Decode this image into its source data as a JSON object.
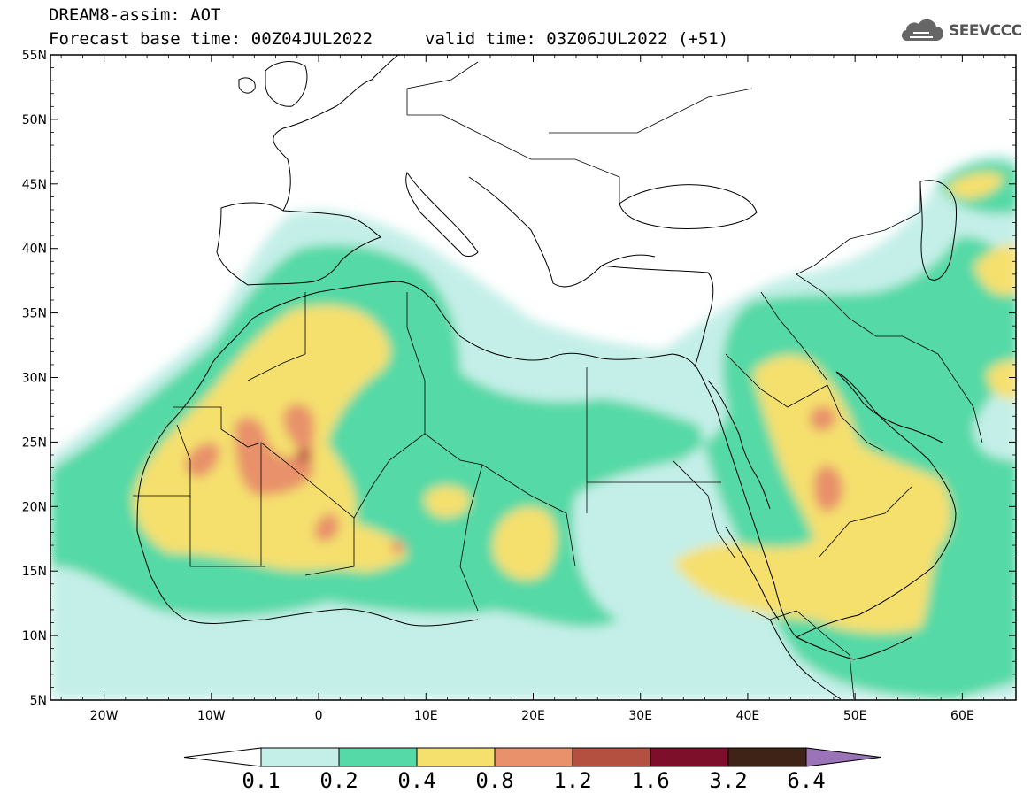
{
  "title": {
    "line1": "DREAM8-assim: AOT",
    "line2": "Forecast base time: 00Z04JUL2022",
    "valid": "valid time: 03Z06JUL2022 (+51)"
  },
  "logo": {
    "text": "SEEVCCC",
    "icon": "cloud-icon"
  },
  "map": {
    "lon_range": [
      -25,
      65
    ],
    "lat_range": [
      5,
      55
    ],
    "lat_ticks": [
      "55N",
      "50N",
      "45N",
      "40N",
      "35N",
      "30N",
      "25N",
      "20N",
      "15N",
      "10N",
      "5N"
    ],
    "lon_ticks": [
      "20W",
      "10W",
      "0",
      "10E",
      "20E",
      "30E",
      "40E",
      "50E",
      "60E"
    ]
  },
  "colorbar": {
    "levels": [
      "0.1",
      "0.2",
      "0.4",
      "0.8",
      "1.2",
      "1.6",
      "3.2",
      "6.4"
    ],
    "colors": [
      "#c4efe8",
      "#55d9a6",
      "#f5e06e",
      "#e8916a",
      "#b4503f",
      "#7d0f2a",
      "#3f2316",
      "#9b73b8"
    ],
    "low_color": "#ffffff"
  }
}
